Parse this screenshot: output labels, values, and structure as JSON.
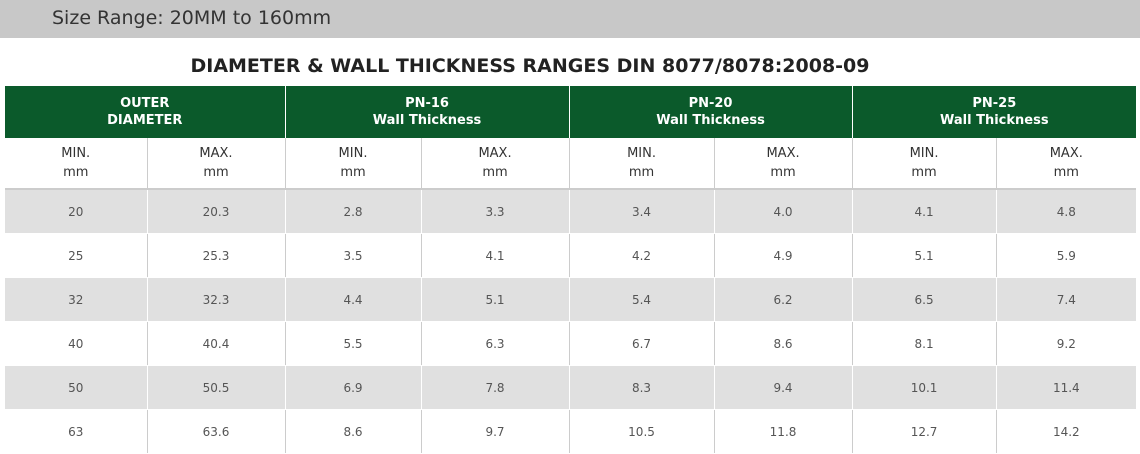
{
  "header": {
    "text": "Size Range: 20MM to 160mm"
  },
  "title": "DIAMETER & WALL THICKNESS RANGES DIN 8077/8078:2008-09",
  "table": {
    "groups": [
      [
        "OUTER",
        "DIAMETER"
      ],
      [
        "PN-16",
        "Wall Thickness"
      ],
      [
        "PN-20",
        "Wall Thickness"
      ],
      [
        "PN-25",
        "Wall Thickness"
      ]
    ],
    "subheaders": [
      [
        "MIN.",
        "mm"
      ],
      [
        "MAX.",
        "mm"
      ],
      [
        "MIN.",
        "mm"
      ],
      [
        "MAX.",
        "mm"
      ],
      [
        "MIN.",
        "mm"
      ],
      [
        "MAX.",
        "mm"
      ],
      [
        "MIN.",
        "mm"
      ],
      [
        "MAX.",
        "mm"
      ]
    ],
    "rows": [
      [
        "20",
        "20.3",
        "2.8",
        "3.3",
        "3.4",
        "4.0",
        "4.1",
        "4.8"
      ],
      [
        "25",
        "25.3",
        "3.5",
        "4.1",
        "4.2",
        "4.9",
        "5.1",
        "5.9"
      ],
      [
        "32",
        "32.3",
        "4.4",
        "5.1",
        "5.4",
        "6.2",
        "6.5",
        "7.4"
      ],
      [
        "40",
        "40.4",
        "5.5",
        "6.3",
        "6.7",
        "8.6",
        "8.1",
        "9.2"
      ],
      [
        "50",
        "50.5",
        "6.9",
        "7.8",
        "8.3",
        "9.4",
        "10.1",
        "11.4"
      ],
      [
        "63",
        "63.6",
        "8.6",
        "9.7",
        "10.5",
        "11.8",
        "12.7",
        "14.2"
      ]
    ]
  }
}
